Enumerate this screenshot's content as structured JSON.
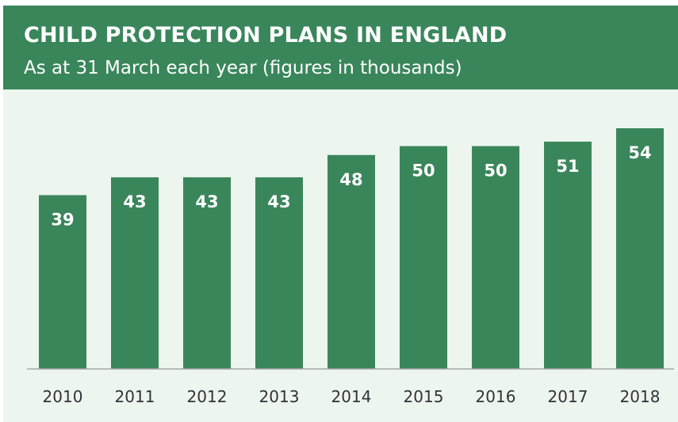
{
  "header": {
    "title": "CHILD PROTECTION PLANS IN ENGLAND",
    "subtitle": "As at 31 March each year (figures in thousands)"
  },
  "colors": {
    "bar": "#3a865b",
    "header_bg": "#3a865b",
    "plot_bg": "#edf5ef",
    "bar_label": "#ffffff",
    "tick_label": "#333333",
    "baseline": "#a8a8a8"
  },
  "chart_data": {
    "type": "bar",
    "title": "CHILD PROTECTION PLANS IN ENGLAND",
    "subtitle": "As at 31 March each year (figures in thousands)",
    "categories": [
      "2010",
      "2011",
      "2012",
      "2013",
      "2014",
      "2015",
      "2016",
      "2017",
      "2018"
    ],
    "values": [
      39,
      43,
      43,
      43,
      48,
      50,
      50,
      51,
      54
    ],
    "xlabel": "",
    "ylabel": "",
    "ylim": [
      0,
      55
    ],
    "grid": false,
    "legend": "none",
    "data_labels": "inside-top"
  }
}
